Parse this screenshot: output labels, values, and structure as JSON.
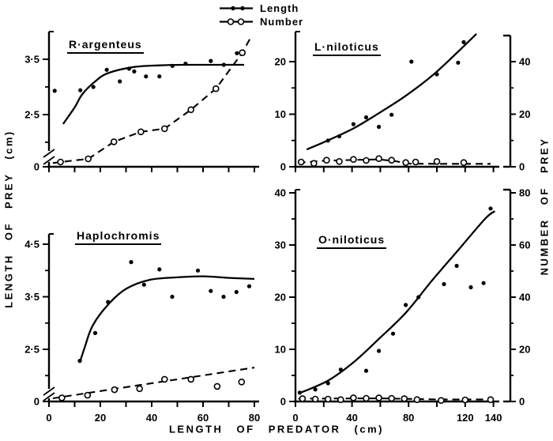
{
  "chart_data": {
    "type": "scatter",
    "title": "",
    "xlabel": "LENGTH OF PREDATOR (cm)",
    "ylabel_left": "LENGTH OF PREY (cm)",
    "ylabel_right": "NUMBER OF PREY",
    "legend": [
      {
        "label": "Length",
        "marker": "filled-dot",
        "line": "solid"
      },
      {
        "label": "Number",
        "marker": "open-circle",
        "line": "dashed"
      }
    ],
    "panels": [
      {
        "key": "tl",
        "title": "R·argenteus",
        "xlim": [
          0,
          80
        ],
        "x_tick_step": 10,
        "x_tick_labels": [],
        "y_length": {
          "labeled_ticks": [
            {
              "v": 3.5,
              "label": "3·5"
            },
            {
              "v": 2.5,
              "label": "2·5"
            }
          ],
          "minor_ticks": [
            3.0,
            2.0
          ],
          "axis_break": true,
          "zero_label": "0"
        },
        "series_length": {
          "points": [
            [
              2.2,
              2.93
            ],
            [
              12.2,
              2.94
            ],
            [
              17.3,
              3.0
            ],
            [
              22.5,
              3.31
            ],
            [
              27.6,
              3.1
            ],
            [
              31.2,
              3.33
            ],
            [
              33.2,
              3.28
            ],
            [
              37.8,
              3.19
            ],
            [
              43,
              3.19
            ],
            [
              48.1,
              3.38
            ],
            [
              53.2,
              3.42
            ],
            [
              63,
              3.47
            ],
            [
              68.1,
              3.4
            ],
            [
              73.2,
              3.61
            ]
          ],
          "curve": [
            [
              5.5,
              2.33
            ],
            [
              10,
              2.63
            ],
            [
              13,
              2.87
            ],
            [
              18,
              3.1
            ],
            [
              23,
              3.25
            ],
            [
              33,
              3.36
            ],
            [
              43,
              3.39
            ],
            [
              53,
              3.4
            ],
            [
              64,
              3.4
            ],
            [
              76,
              3.4
            ]
          ]
        },
        "series_number": {
          "points": [
            [
              4.5,
              1.8
            ],
            [
              15.3,
              3.0
            ],
            [
              25.3,
              9.5
            ],
            [
              35.8,
              13.3
            ],
            [
              45,
              14.5
            ],
            [
              55.3,
              21.7
            ],
            [
              65,
              29.7
            ],
            [
              75.3,
              43.4
            ]
          ],
          "curve": [
            [
              1.5,
              1.4
            ],
            [
              4.5,
              1.8
            ],
            [
              15.3,
              3.0
            ],
            [
              25.3,
              9.5
            ],
            [
              35.8,
              13.3
            ],
            [
              45,
              14.5
            ],
            [
              55.3,
              21.7
            ],
            [
              65,
              29.7
            ],
            [
              75.3,
              43.4
            ],
            [
              79,
              50
            ]
          ]
        }
      },
      {
        "key": "tr",
        "title": "L·niloticus",
        "xlim": [
          0,
          140
        ],
        "x_tick_step": 20,
        "x_tick_labels": [],
        "y_length": {
          "labeled_ticks": [
            {
              "v": 20,
              "label": "20"
            },
            {
              "v": 10,
              "label": "10"
            },
            {
              "v": 0,
              "label": "0"
            }
          ],
          "minor_ticks": [
            15,
            5
          ],
          "axis_break": false
        },
        "y_number": {
          "labeled_ticks": [
            {
              "v": 40,
              "label": "40"
            },
            {
              "v": 20,
              "label": "20"
            },
            {
              "v": 0,
              "label": "0"
            }
          ],
          "minor_ticks": [
            30,
            10
          ]
        },
        "series_length": {
          "points": [
            [
              23,
              5.0
            ],
            [
              31,
              5.8
            ],
            [
              41,
              8.1
            ],
            [
              50,
              9.4
            ],
            [
              59,
              7.6
            ],
            [
              68,
              9.9
            ],
            [
              82,
              20.0
            ],
            [
              100,
              17.6
            ],
            [
              115,
              19.8
            ],
            [
              119,
              23.7
            ]
          ],
          "curve": [
            [
              8,
              3.3
            ],
            [
              22,
              4.9
            ],
            [
              41,
              7.3
            ],
            [
              59,
              10.2
            ],
            [
              78,
              13.5
            ],
            [
              97,
              17.4
            ],
            [
              115,
              21.9
            ],
            [
              128,
              25.3
            ]
          ]
        },
        "series_number": {
          "points": [
            [
              4,
              1.8
            ],
            [
              13,
              1.3
            ],
            [
              22,
              2.5
            ],
            [
              31,
              2.0
            ],
            [
              41,
              2.8
            ],
            [
              50,
              2.4
            ],
            [
              59,
              3.1
            ],
            [
              68,
              2.5
            ],
            [
              78,
              1.6
            ],
            [
              85,
              1.8
            ],
            [
              100,
              2.0
            ],
            [
              119,
              1.6
            ]
          ],
          "curve": [
            [
              2,
              1.5
            ],
            [
              20,
              2.3
            ],
            [
              40,
              2.6
            ],
            [
              59,
              2.8
            ],
            [
              70,
              2.2
            ],
            [
              80,
              1.2
            ],
            [
              100,
              1.1
            ],
            [
              138,
              1.1
            ]
          ]
        }
      },
      {
        "key": "bl",
        "title": "Haplochromis",
        "xlim": [
          0,
          80
        ],
        "x_tick_step": 10,
        "x_tick_labels": [
          {
            "v": 0,
            "label": "0"
          },
          {
            "v": 20,
            "label": "20"
          },
          {
            "v": 40,
            "label": "40"
          },
          {
            "v": 60,
            "label": "60"
          },
          {
            "v": 80,
            "label": "80"
          }
        ],
        "y_length": {
          "labeled_ticks": [
            {
              "v": 4.5,
              "label": "4·5"
            },
            {
              "v": 3.5,
              "label": "3·5"
            },
            {
              "v": 2.5,
              "label": "2·5"
            }
          ],
          "minor_ticks": [
            4.0,
            3.0,
            2.0
          ],
          "axis_break": true,
          "zero_label": "0"
        },
        "series_length": {
          "points": [
            [
              12,
              2.28
            ],
            [
              18,
              2.81
            ],
            [
              23,
              3.4
            ],
            [
              32,
              4.16
            ],
            [
              37,
              3.73
            ],
            [
              43,
              4.02
            ],
            [
              48,
              3.5
            ],
            [
              58,
              4.0
            ],
            [
              63,
              3.61
            ],
            [
              68,
              3.5
            ],
            [
              73,
              3.59
            ],
            [
              78,
              3.7
            ]
          ],
          "curve": [
            [
              12,
              2.25
            ],
            [
              14,
              2.55
            ],
            [
              17,
              2.95
            ],
            [
              23,
              3.35
            ],
            [
              30,
              3.65
            ],
            [
              39,
              3.82
            ],
            [
              50,
              3.87
            ],
            [
              60,
              3.89
            ],
            [
              70,
              3.86
            ],
            [
              80,
              3.84
            ]
          ]
        },
        "series_number": {
          "points": [
            [
              5,
              1.4
            ],
            [
              15,
              2.4
            ],
            [
              25.5,
              4.5
            ],
            [
              35.3,
              4.9
            ],
            [
              45,
              8.5
            ],
            [
              55.3,
              8.5
            ],
            [
              65.5,
              5.8
            ],
            [
              75,
              7.5
            ]
          ],
          "curve": [
            [
              1.5,
              1.2
            ],
            [
              80,
              13
            ]
          ]
        }
      },
      {
        "key": "br",
        "title": "O·niloticus",
        "xlim": [
          0,
          140
        ],
        "x_tick_step": 20,
        "x_tick_labels": [
          {
            "v": 0,
            "label": "0"
          },
          {
            "v": 40,
            "label": "40"
          },
          {
            "v": 80,
            "label": "80"
          },
          {
            "v": 120,
            "label": "120"
          },
          {
            "v": 140,
            "label": "140"
          }
        ],
        "y_length": {
          "labeled_ticks": [
            {
              "v": 40,
              "label": "40"
            },
            {
              "v": 30,
              "label": "30"
            },
            {
              "v": 20,
              "label": "20"
            },
            {
              "v": 10,
              "label": "10"
            },
            {
              "v": 0,
              "label": "0"
            }
          ],
          "minor_ticks": [
            35,
            25,
            15,
            5
          ],
          "axis_break": false
        },
        "y_number": {
          "labeled_ticks": [
            {
              "v": 80,
              "label": "80"
            },
            {
              "v": 60,
              "label": "60"
            },
            {
              "v": 40,
              "label": "40"
            },
            {
              "v": 20,
              "label": "20"
            },
            {
              "v": 0,
              "label": "0"
            }
          ],
          "minor_ticks": [
            70,
            50,
            30,
            10
          ]
        },
        "series_length": {
          "points": [
            [
              3,
              1.7
            ],
            [
              14,
              2.3
            ],
            [
              23,
              3.5
            ],
            [
              32,
              6.1
            ],
            [
              50,
              5.9
            ],
            [
              59,
              9.7
            ],
            [
              69,
              13.0
            ],
            [
              78,
              18.5
            ],
            [
              87,
              20.0
            ],
            [
              105,
              22.5
            ],
            [
              114,
              26.0
            ],
            [
              124,
              21.9
            ],
            [
              133,
              22.7
            ],
            [
              138,
              37.0
            ]
          ],
          "curve": [
            [
              2,
              1.5
            ],
            [
              23,
              4.0
            ],
            [
              41,
              7.5
            ],
            [
              59,
              12.0
            ],
            [
              78,
              17.0
            ],
            [
              96,
              23.0
            ],
            [
              115,
              29.0
            ],
            [
              134,
              35.0
            ],
            [
              141,
              36.5
            ]
          ]
        },
        "series_number": {
          "points": [
            [
              5,
              1.1
            ],
            [
              14,
              0.9
            ],
            [
              23,
              0.9
            ],
            [
              32,
              0.7
            ],
            [
              41,
              1.4
            ],
            [
              50,
              1.2
            ],
            [
              59,
              1.4
            ],
            [
              68,
              1.2
            ],
            [
              77,
              1.1
            ],
            [
              86,
              0.7
            ],
            [
              103,
              0.4
            ],
            [
              120,
              0.6
            ],
            [
              138,
              0.7
            ]
          ],
          "curve": [
            [
              2,
              1.1
            ],
            [
              60,
              1.2
            ],
            [
              100,
              0.8
            ],
            [
              140,
              0.8
            ]
          ]
        }
      }
    ]
  }
}
